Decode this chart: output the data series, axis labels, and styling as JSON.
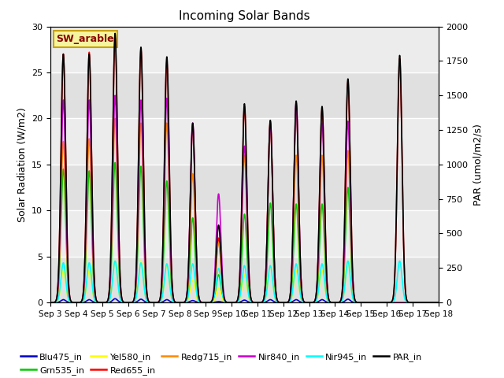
{
  "title": "Incoming Solar Bands",
  "ylabel_left": "Solar Radiation (W/m2)",
  "ylabel_right": "PAR (umol/m2/s)",
  "ylim_left": [
    0,
    30
  ],
  "ylim_right": [
    0,
    2000
  ],
  "bg_light": "#e8e8e8",
  "bg_dark": "#d0d0d0",
  "annotation_text": "SW_arable",
  "annotation_color": "#8b0000",
  "annotation_bg": "#f5f5a0",
  "annotation_border": "#c8a000",
  "series_names": [
    "Blu475_in",
    "Grn535_in",
    "Yel580_in",
    "Red655_in",
    "Redg715_in",
    "Nir840_in",
    "Nir945_in",
    "PAR_in"
  ],
  "series_colors": {
    "Blu475_in": "#0000cd",
    "Grn535_in": "#00cc00",
    "Yel580_in": "#ffff00",
    "Red655_in": "#ff0000",
    "Redg715_in": "#ff8800",
    "Nir840_in": "#cc00cc",
    "Nir945_in": "#00ffff",
    "PAR_in": "#000000"
  },
  "days": [
    3,
    4,
    5,
    6,
    7,
    8,
    9,
    10,
    11,
    12,
    13,
    14,
    15,
    16,
    17,
    18
  ],
  "sigma": 0.09,
  "day_peaks": {
    "Red655_in": [
      27.0,
      27.2,
      28.8,
      27.5,
      26.2,
      19.2,
      7.0,
      21.3,
      19.7,
      21.5,
      21.0,
      24.0,
      0.0,
      26.5,
      0.0,
      0.0
    ],
    "Redg715_in": [
      17.5,
      17.8,
      20.0,
      19.5,
      19.5,
      14.0,
      6.5,
      16.0,
      19.5,
      16.0,
      16.0,
      16.5,
      0.0,
      0.0,
      0.0,
      0.0
    ],
    "Grn535_in": [
      14.5,
      14.3,
      15.2,
      14.8,
      13.2,
      9.2,
      3.0,
      9.6,
      10.8,
      10.7,
      10.7,
      12.5,
      0.0,
      0.0,
      0.0,
      0.0
    ],
    "Nir840_in": [
      22.0,
      22.0,
      22.5,
      22.0,
      22.2,
      19.5,
      11.8,
      17.0,
      19.5,
      21.7,
      19.5,
      19.7,
      0.0,
      0.0,
      0.0,
      0.0
    ],
    "Yel580_in": [
      3.5,
      3.5,
      4.5,
      4.5,
      4.0,
      2.5,
      1.5,
      3.0,
      4.0,
      3.5,
      3.5,
      4.5,
      0.0,
      0.0,
      0.0,
      0.0
    ],
    "Blu475_in": [
      0.3,
      0.3,
      0.4,
      0.35,
      0.3,
      0.2,
      0.1,
      0.25,
      0.3,
      0.3,
      0.3,
      0.35,
      0.0,
      0.0,
      0.0,
      0.0
    ],
    "Nir945_in": [
      4.3,
      4.3,
      4.5,
      4.3,
      4.2,
      4.2,
      3.7,
      4.0,
      4.0,
      4.2,
      4.2,
      4.5,
      0.0,
      4.5,
      0.0,
      0.0
    ],
    "PAR_in": [
      1800,
      1800,
      1950,
      1850,
      1780,
      1300,
      560,
      1440,
      1320,
      1460,
      1420,
      1620,
      0.0,
      1790,
      0.0,
      0.0
    ]
  },
  "legend_order": [
    "Blu475_in",
    "Grn535_in",
    "Yel580_in",
    "Red655_in",
    "Redg715_in",
    "Nir840_in",
    "Nir945_in",
    "PAR_in"
  ]
}
